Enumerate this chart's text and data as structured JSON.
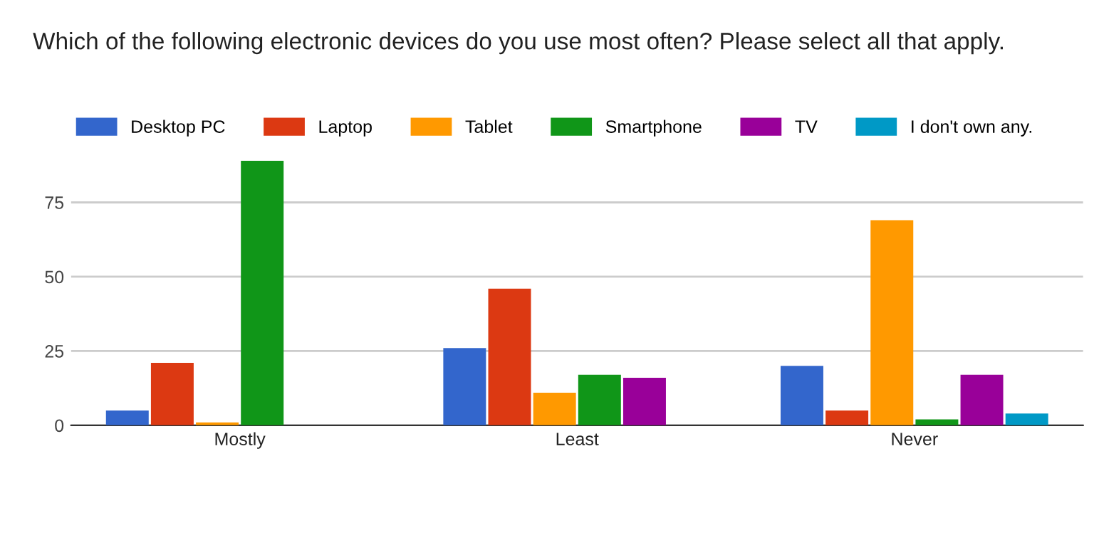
{
  "chart_data": {
    "type": "bar",
    "title": "Which of the following electronic devices do you use most often? Please select all that apply.",
    "categories": [
      "Mostly",
      "Least",
      "Never"
    ],
    "series": [
      {
        "name": "Desktop PC",
        "color": "#3366cc",
        "values": [
          5,
          26,
          20
        ]
      },
      {
        "name": "Laptop",
        "color": "#dc3912",
        "values": [
          21,
          46,
          5
        ]
      },
      {
        "name": "Tablet",
        "color": "#ff9900",
        "values": [
          1,
          11,
          69
        ]
      },
      {
        "name": "Smartphone",
        "color": "#109618",
        "values": [
          89,
          17,
          2
        ]
      },
      {
        "name": "TV",
        "color": "#990099",
        "values": [
          0,
          16,
          17
        ]
      },
      {
        "name": "I don't own any.",
        "color": "#0099c6",
        "values": [
          0,
          0,
          4
        ]
      }
    ],
    "ylim": [
      0,
      90
    ],
    "yticks": [
      0,
      25,
      50,
      75
    ],
    "grid": "y",
    "legend": "top left"
  }
}
